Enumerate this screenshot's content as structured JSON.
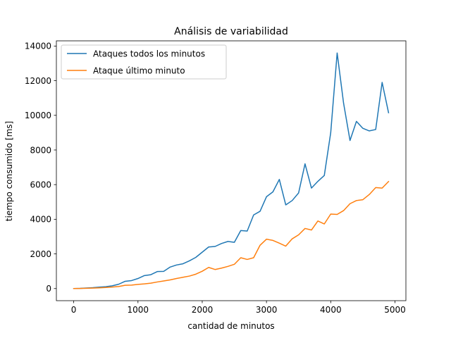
{
  "chart_data": {
    "type": "line",
    "title": "Análisis de variabilidad",
    "xlabel": "cantidad de minutos",
    "ylabel": "tiempo consumido [ms]",
    "xlim": [
      -270,
      5170
    ],
    "ylim": [
      -700,
      14300
    ],
    "xticks": [
      0,
      1000,
      2000,
      3000,
      4000,
      5000
    ],
    "xtick_labels": [
      "0",
      "1000",
      "2000",
      "3000",
      "4000",
      "5000"
    ],
    "yticks": [
      0,
      2000,
      4000,
      6000,
      8000,
      10000,
      12000,
      14000
    ],
    "ytick_labels": [
      "0",
      "2000",
      "4000",
      "6000",
      "8000",
      "10000",
      "12000",
      "14000"
    ],
    "legend_position": "upper-left",
    "x": [
      0,
      100,
      200,
      300,
      400,
      500,
      600,
      700,
      800,
      900,
      1000,
      1100,
      1200,
      1300,
      1400,
      1500,
      1600,
      1700,
      1800,
      1900,
      2000,
      2100,
      2200,
      2300,
      2400,
      2500,
      2600,
      2700,
      2800,
      2900,
      3000,
      3100,
      3200,
      3300,
      3400,
      3500,
      3600,
      3700,
      3800,
      3900,
      4000,
      4100,
      4200,
      4300,
      4400,
      4500,
      4600,
      4700,
      4800,
      4900
    ],
    "series": [
      {
        "name": "Ataques todos los minutos",
        "color": "#1f77b4",
        "values": [
          0,
          10,
          30,
          50,
          80,
          110,
          160,
          250,
          420,
          460,
          580,
          750,
          800,
          980,
          990,
          1240,
          1360,
          1430,
          1600,
          1800,
          2100,
          2400,
          2430,
          2600,
          2720,
          2670,
          3350,
          3320,
          4250,
          4460,
          5300,
          5580,
          6300,
          4830,
          5080,
          5520,
          7200,
          5800,
          6190,
          6530,
          9000,
          13600,
          10700,
          8550,
          9650,
          9250,
          9100,
          9180,
          11900,
          10150
        ]
      },
      {
        "name": "Ataque último minuto",
        "color": "#ff7f0e",
        "values": [
          0,
          5,
          15,
          25,
          40,
          60,
          90,
          120,
          190,
          200,
          240,
          270,
          310,
          380,
          440,
          500,
          580,
          650,
          720,
          830,
          1000,
          1220,
          1100,
          1180,
          1280,
          1400,
          1780,
          1680,
          1780,
          2500,
          2850,
          2780,
          2620,
          2450,
          2870,
          3100,
          3470,
          3380,
          3900,
          3730,
          4300,
          4280,
          4500,
          4900,
          5080,
          5130,
          5430,
          5830,
          5800,
          6180
        ]
      }
    ]
  }
}
